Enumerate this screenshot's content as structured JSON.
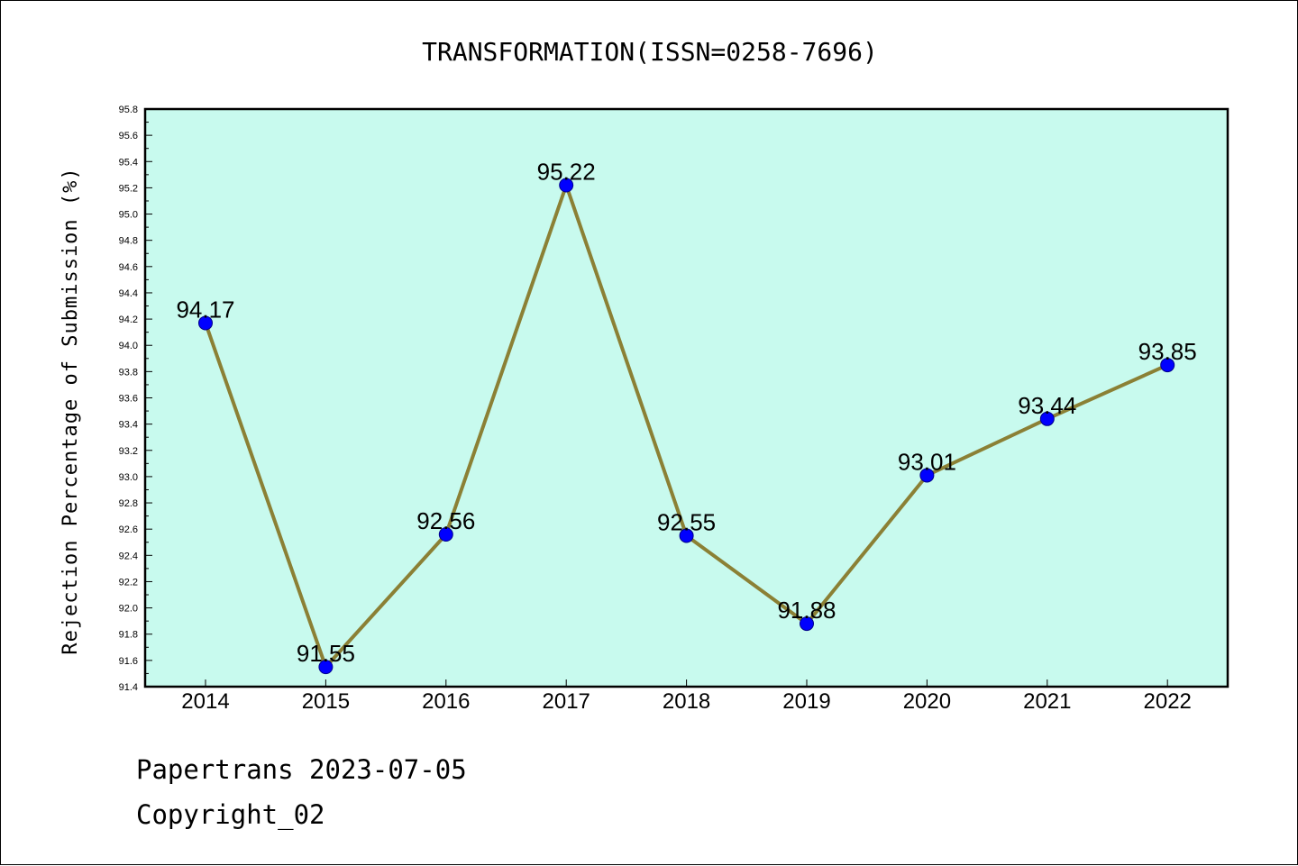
{
  "chart_data": {
    "type": "line",
    "title": "TRANSFORMATION(ISSN=0258-7696)",
    "xlabel": "",
    "ylabel": "Rejection Percentage of Submission (%)",
    "categories": [
      "2014",
      "2015",
      "2016",
      "2017",
      "2018",
      "2019",
      "2020",
      "2021",
      "2022"
    ],
    "series": [
      {
        "values": [
          94.17,
          91.55,
          92.56,
          95.22,
          92.55,
          91.88,
          93.01,
          93.44,
          93.85
        ]
      }
    ],
    "data_labels": [
      "94.17",
      "91.55",
      "92.56",
      "95.22",
      "92.55",
      "91.88",
      "93.01",
      "93.44",
      "93.85"
    ],
    "ylim": [
      91.4,
      95.8
    ],
    "yticks": [
      "91.4",
      "91.6",
      "91.8",
      "92.0",
      "92.2",
      "92.4",
      "92.6",
      "92.8",
      "93.0",
      "93.2",
      "93.4",
      "93.6",
      "93.8",
      "94.0",
      "94.2",
      "94.4",
      "94.6",
      "94.8",
      "95.0",
      "95.2",
      "95.4",
      "95.6",
      "95.8"
    ],
    "grid": false,
    "colors": {
      "plot_bg": "#c8faee",
      "line": "#8b8035",
      "marker": "#0000ff",
      "marker_edge": "#00008b"
    }
  },
  "footer": {
    "line1": "Papertrans 2023-07-05",
    "line2": "Copyright_02"
  }
}
